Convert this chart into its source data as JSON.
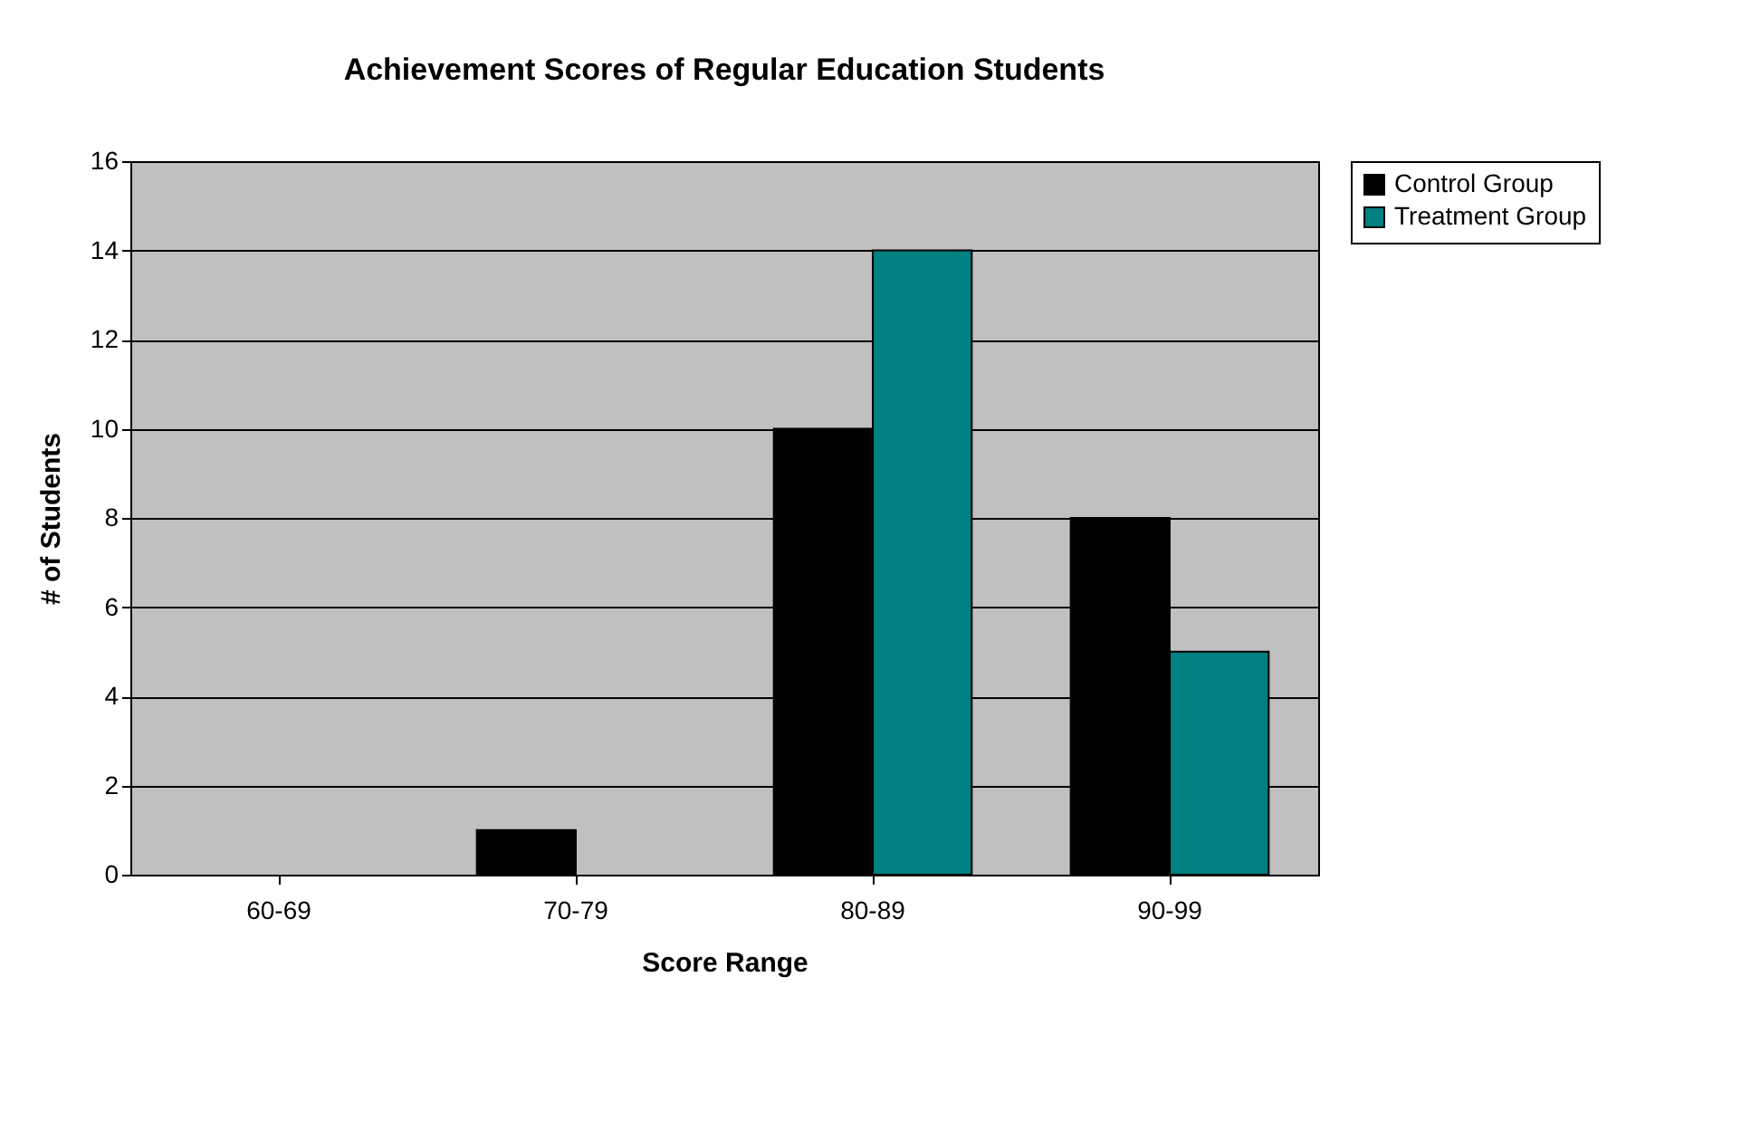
{
  "chart_data": {
    "type": "bar",
    "title": "Achievement Scores of Regular Education Students",
    "xlabel": "Score Range",
    "ylabel": "# of Students",
    "categories": [
      "60-69",
      "70-79",
      "80-89",
      "90-99"
    ],
    "series": [
      {
        "name": "Control Group",
        "color": "#000000",
        "values": [
          0,
          1,
          10,
          8
        ]
      },
      {
        "name": "Treatment Group",
        "color": "#008080",
        "values": [
          0,
          0,
          14,
          5
        ]
      }
    ],
    "ylim": [
      0,
      16
    ],
    "yticks": [
      0,
      2,
      4,
      6,
      8,
      10,
      12,
      14,
      16
    ],
    "grid": "y",
    "legend": "right"
  }
}
